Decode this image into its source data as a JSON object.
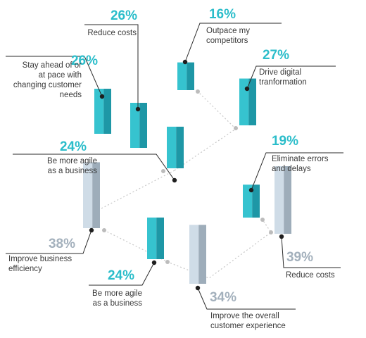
{
  "colors": {
    "teal_light": "#36c3cf",
    "teal_dark": "#1e97a6",
    "teal_text": "#2bbdca",
    "grey_light": "#cfdce7",
    "grey_dark": "#9eadba",
    "grey_text": "#a3b0bc",
    "dot_path": "#bcbcbc",
    "dot_label": "#1e1e1e"
  },
  "chart_data": {
    "type": "bar",
    "title": "",
    "unit": "%",
    "items": [
      {
        "label": "Stay ahead of or at pace with changing customer needs",
        "value": 26,
        "value_label": "26%",
        "group": "teal"
      },
      {
        "label": "Reduce costs",
        "value": 26,
        "value_label": "26%",
        "group": "teal"
      },
      {
        "label": "Be more agile as a business",
        "value": 24,
        "value_label": "24%",
        "group": "teal"
      },
      {
        "label": "Outpace my competitors",
        "value": 16,
        "value_label": "16%",
        "group": "teal"
      },
      {
        "label": "Drive digital tranformation",
        "value": 27,
        "value_label": "27%",
        "group": "teal"
      },
      {
        "label": "Improve business efficiency",
        "value": 38,
        "value_label": "38%",
        "group": "grey"
      },
      {
        "label": "Be more agile as a business",
        "value": 24,
        "value_label": "24%",
        "group": "teal"
      },
      {
        "label": "Improve the overall customer experience",
        "value": 34,
        "value_label": "34%",
        "group": "grey"
      },
      {
        "label": "Eliminate errors and delays",
        "value": 19,
        "value_label": "19%",
        "group": "teal"
      },
      {
        "label": "Reduce costs",
        "value": 39,
        "value_label": "39%",
        "group": "grey"
      }
    ]
  }
}
